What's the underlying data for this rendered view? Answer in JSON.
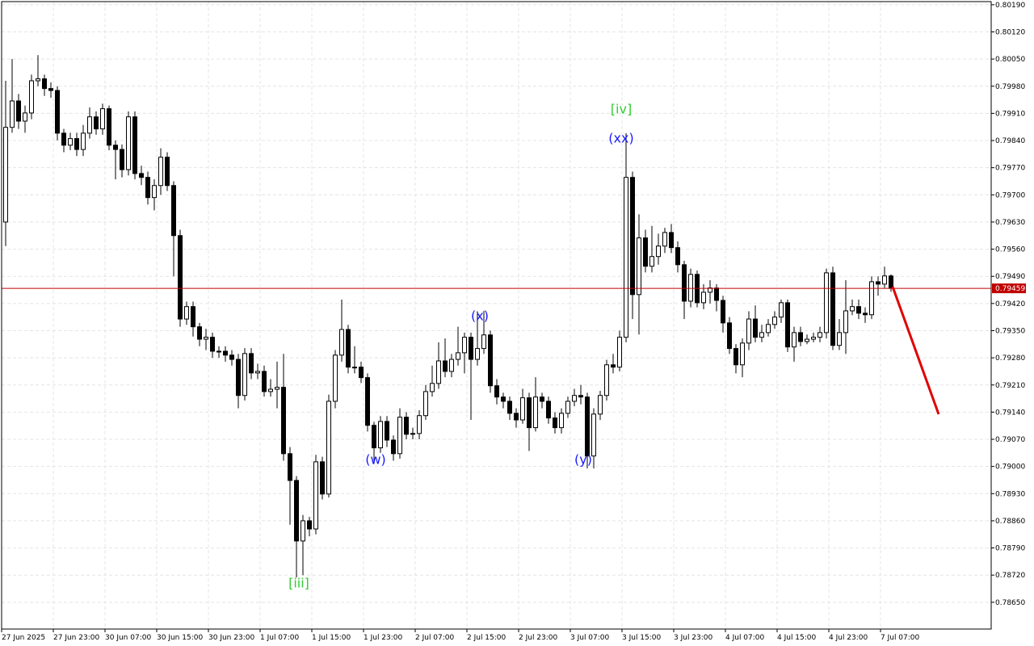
{
  "chart_data": {
    "type": "candlestick",
    "ylim": [
      0.78581,
      0.80198
    ],
    "yticks": [
      {
        "value": 0.8019,
        "label": "0.80190"
      },
      {
        "value": 0.8012,
        "label": "0.80120"
      },
      {
        "value": 0.8005,
        "label": "0.80050"
      },
      {
        "value": 0.7998,
        "label": "0.79980"
      },
      {
        "value": 0.7991,
        "label": "0.79910"
      },
      {
        "value": 0.7984,
        "label": "0.79840"
      },
      {
        "value": 0.7977,
        "label": "0.79770"
      },
      {
        "value": 0.797,
        "label": "0.79700"
      },
      {
        "value": 0.7963,
        "label": "0.79630"
      },
      {
        "value": 0.7956,
        "label": "0.79560"
      },
      {
        "value": 0.7949,
        "label": "0.79490"
      },
      {
        "value": 0.7942,
        "label": "0.79420"
      },
      {
        "value": 0.7935,
        "label": "0.79350"
      },
      {
        "value": 0.7928,
        "label": "0.79280"
      },
      {
        "value": 0.7921,
        "label": "0.79210"
      },
      {
        "value": 0.7914,
        "label": "0.79140"
      },
      {
        "value": 0.7907,
        "label": "0.79070"
      },
      {
        "value": 0.79,
        "label": "0.79000"
      },
      {
        "value": 0.7893,
        "label": "0.78930"
      },
      {
        "value": 0.7886,
        "label": "0.78860"
      },
      {
        "value": 0.7879,
        "label": "0.78790"
      },
      {
        "value": 0.7872,
        "label": "0.78720"
      },
      {
        "value": 0.7865,
        "label": "0.78650"
      }
    ],
    "grid": true,
    "up_color": "#ffffff",
    "down_color": "#000000",
    "current_price": 0.79459,
    "current_price_color": "#c00000",
    "annotations": [
      {
        "text": "[iv]",
        "color": "#33cc33"
      },
      {
        "text": "(xx)",
        "color": "#1a1aff"
      },
      {
        "text": "(x)",
        "color": "#1a1aff"
      },
      {
        "text": "(w)",
        "color": "#1a1aff"
      },
      {
        "text": "(y)",
        "color": "#1a1aff"
      },
      {
        "text": "[iii]",
        "color": "#33cc33"
      }
    ],
    "categories": [
      "27 Jun 2025",
      null,
      null,
      null,
      null,
      null,
      null,
      null,
      "27 Jun 23:00",
      null,
      null,
      null,
      null,
      null,
      null,
      null,
      "30 Jun 07:00",
      null,
      null,
      null,
      null,
      null,
      null,
      null,
      "30 Jun 15:00",
      null,
      null,
      null,
      null,
      null,
      null,
      null,
      "30 Jun 23:00",
      null,
      null,
      null,
      null,
      null,
      null,
      null,
      "1 Jul 07:00",
      null,
      null,
      null,
      null,
      null,
      null,
      null,
      "1 Jul 15:00",
      null,
      null,
      null,
      null,
      null,
      null,
      null,
      "1 Jul 23:00",
      null,
      null,
      null,
      null,
      null,
      null,
      null,
      "2 Jul 07:00",
      null,
      null,
      null,
      null,
      null,
      null,
      null,
      "2 Jul 15:00",
      null,
      null,
      null,
      null,
      null,
      null,
      null,
      "2 Jul 23:00",
      null,
      null,
      null,
      null,
      null,
      null,
      null,
      "3 Jul 07:00",
      null,
      null,
      null,
      null,
      null,
      null,
      null,
      "3 Jul 15:00",
      null,
      null,
      null,
      null,
      null,
      null,
      null,
      "3 Jul 23:00",
      null,
      null,
      null,
      null,
      null,
      null,
      null,
      "4 Jul 07:00",
      null,
      null,
      null,
      null,
      null,
      null,
      null,
      "4 Jul 15:00",
      null,
      null,
      null,
      null,
      null,
      null,
      null,
      "4 Jul 23:00",
      null,
      null,
      null,
      null,
      null,
      null,
      null,
      "7 Jul 07:00",
      null
    ],
    "open": [
      0.7963,
      0.79874,
      0.79942,
      0.7989,
      0.79911,
      0.79994,
      0.79999,
      0.79974,
      0.79969,
      0.79859,
      0.79828,
      0.79845,
      0.79817,
      0.79859,
      0.79901,
      0.7987,
      0.79922,
      0.79828,
      0.79817,
      0.79765,
      0.79901,
      0.79755,
      0.79745,
      0.79693,
      0.79724,
      0.79797,
      0.79724,
      0.79595,
      0.7938,
      0.79412,
      0.7936,
      0.79328,
      0.79333,
      0.79297,
      0.79297,
      0.79287,
      0.79276,
      0.79183,
      0.79291,
      0.79241,
      0.79245,
      0.79193,
      0.79199,
      0.79204,
      0.79033,
      0.78964,
      0.78808,
      0.7886,
      0.78839,
      0.79012,
      0.78929,
      0.79168,
      0.79287,
      0.79353,
      0.79256,
      0.79256,
      0.79229,
      0.79106,
      0.79048,
      0.79116,
      0.79068,
      0.79033,
      0.79127,
      0.79083,
      0.79085,
      0.79131,
      0.79193,
      0.79214,
      0.79272,
      0.79245,
      0.79276,
      0.79293,
      0.79333,
      0.79276,
      0.79304,
      0.79339,
      0.79208,
      0.79179,
      0.79168,
      0.79137,
      0.7912,
      0.79177,
      0.791,
      0.79179,
      0.79168,
      0.79125,
      0.791,
      0.79137,
      0.79168,
      0.79183,
      0.79179,
      0.79027,
      0.79135,
      0.79183,
      0.79262,
      0.79256,
      0.79333,
      0.79745,
      0.79443,
      0.79589,
      0.79516,
      0.79541,
      0.79568,
      0.79603,
      0.79564,
      0.7952,
      0.79426,
      0.79495,
      0.79422,
      0.79449,
      0.7946,
      0.79428,
      0.7937,
      0.79304,
      0.79262,
      0.79318,
      0.7938,
      0.79333,
      0.79345,
      0.79366,
      0.79385,
      0.79422,
      0.79308,
      0.79345,
      0.79322,
      0.79328,
      0.79333,
      0.79345,
      0.79499,
      0.79312,
      0.79345,
      0.79401,
      0.79412,
      0.79395,
      0.79391,
      0.79476,
      0.7947,
      0.79491
    ],
    "high": [
      0.79994,
      0.8005,
      0.7996,
      0.7993,
      0.8001,
      0.8006,
      0.8001,
      0.7999,
      0.7998,
      0.7987,
      0.7986,
      0.7986,
      0.7988,
      0.79925,
      0.79915,
      0.79935,
      0.7993,
      0.7984,
      0.7983,
      0.79915,
      0.79915,
      0.79775,
      0.7976,
      0.7974,
      0.7982,
      0.7981,
      0.79735,
      0.7961,
      0.79425,
      0.79425,
      0.7937,
      0.79355,
      0.79345,
      0.7931,
      0.7931,
      0.793,
      0.7929,
      0.79305,
      0.79305,
      0.79265,
      0.7926,
      0.79225,
      0.7927,
      0.7929,
      0.7905,
      0.78975,
      0.78875,
      0.7887,
      0.7903,
      0.79025,
      0.79185,
      0.793,
      0.7943,
      0.79365,
      0.7931,
      0.7927,
      0.7924,
      0.79115,
      0.7913,
      0.7913,
      0.7908,
      0.7915,
      0.7914,
      0.791,
      0.79145,
      0.7921,
      0.7926,
      0.7932,
      0.7933,
      0.7929,
      0.7936,
      0.79345,
      0.79345,
      0.794,
      0.79401,
      0.7935,
      0.79225,
      0.7919,
      0.7918,
      0.7915,
      0.792,
      0.7919,
      0.7923,
      0.7919,
      0.7918,
      0.7914,
      0.7915,
      0.7918,
      0.792,
      0.7921,
      0.7919,
      0.7915,
      0.79195,
      0.79275,
      0.7929,
      0.7935,
      0.79859,
      0.7976,
      0.7965,
      0.7961,
      0.7962,
      0.796,
      0.79615,
      0.79625,
      0.7958,
      0.7953,
      0.7951,
      0.79505,
      0.7947,
      0.7948,
      0.7947,
      0.7944,
      0.79385,
      0.79315,
      0.7933,
      0.794,
      0.79415,
      0.79365,
      0.7938,
      0.794,
      0.7943,
      0.7943,
      0.7936,
      0.7936,
      0.7934,
      0.79345,
      0.7936,
      0.7951,
      0.79515,
      0.7938,
      0.7948,
      0.7943,
      0.7943,
      0.7941,
      0.7949,
      0.7949,
      0.79515,
      0.79495
    ],
    "low": [
      0.79568,
      0.7986,
      0.7987,
      0.7986,
      0.79895,
      0.7998,
      0.79955,
      0.7995,
      0.7984,
      0.7981,
      0.79815,
      0.798,
      0.798,
      0.79845,
      0.79855,
      0.79855,
      0.79815,
      0.7974,
      0.79745,
      0.7975,
      0.7974,
      0.79725,
      0.79675,
      0.7966,
      0.797,
      0.7971,
      0.7949,
      0.7936,
      0.79365,
      0.79335,
      0.7931,
      0.793,
      0.7928,
      0.7928,
      0.7927,
      0.7926,
      0.7915,
      0.7917,
      0.79225,
      0.79225,
      0.7918,
      0.7918,
      0.7915,
      0.79015,
      0.7885,
      0.78714,
      0.7872,
      0.7882,
      0.78825,
      0.78915,
      0.7892,
      0.7915,
      0.7927,
      0.7924,
      0.7924,
      0.79215,
      0.7909,
      0.79006,
      0.79035,
      0.7905,
      0.79015,
      0.7902,
      0.7907,
      0.7907,
      0.7907,
      0.7912,
      0.7918,
      0.792,
      0.7923,
      0.7923,
      0.7926,
      0.7924,
      0.7912,
      0.7926,
      0.7929,
      0.7919,
      0.7916,
      0.7915,
      0.7912,
      0.791,
      0.7911,
      0.7904,
      0.7909,
      0.7915,
      0.7911,
      0.79085,
      0.79085,
      0.79125,
      0.79155,
      0.7916,
      0.78995,
      0.78995,
      0.7912,
      0.7917,
      0.7924,
      0.79245,
      0.7932,
      0.7938,
      0.7934,
      0.795,
      0.795,
      0.7952,
      0.7955,
      0.7955,
      0.795,
      0.7938,
      0.7941,
      0.7941,
      0.79405,
      0.7942,
      0.794,
      0.79345,
      0.7929,
      0.7924,
      0.7923,
      0.793,
      0.7932,
      0.7932,
      0.79335,
      0.79355,
      0.7937,
      0.79295,
      0.7927,
      0.7931,
      0.79315,
      0.7932,
      0.7932,
      0.7933,
      0.793,
      0.793,
      0.7929,
      0.7939,
      0.7938,
      0.7937,
      0.7938,
      0.7944,
      0.7946,
      0.7945
    ],
    "close": [
      0.79874,
      0.79942,
      0.7989,
      0.79911,
      0.79994,
      0.79999,
      0.79974,
      0.79969,
      0.79859,
      0.79828,
      0.79845,
      0.79817,
      0.79859,
      0.79901,
      0.7987,
      0.79922,
      0.79828,
      0.79817,
      0.79765,
      0.79901,
      0.79755,
      0.79745,
      0.79693,
      0.79724,
      0.79797,
      0.79724,
      0.79595,
      0.7938,
      0.79412,
      0.7936,
      0.79328,
      0.79333,
      0.79297,
      0.79297,
      0.79287,
      0.79276,
      0.79183,
      0.79291,
      0.79241,
      0.79245,
      0.79193,
      0.79199,
      0.79204,
      0.79033,
      0.78964,
      0.78808,
      0.7886,
      0.78839,
      0.79012,
      0.78929,
      0.79168,
      0.79287,
      0.79353,
      0.79256,
      0.79256,
      0.79229,
      0.79106,
      0.79048,
      0.79116,
      0.79068,
      0.79033,
      0.79127,
      0.79083,
      0.79085,
      0.79131,
      0.79193,
      0.79214,
      0.79272,
      0.79245,
      0.79276,
      0.79293,
      0.79333,
      0.79276,
      0.79304,
      0.79339,
      0.79208,
      0.79179,
      0.79168,
      0.79137,
      0.7912,
      0.79177,
      0.791,
      0.79179,
      0.79168,
      0.79125,
      0.791,
      0.79137,
      0.79168,
      0.79183,
      0.79179,
      0.79027,
      0.79135,
      0.79183,
      0.79262,
      0.79256,
      0.79333,
      0.79745,
      0.79443,
      0.79589,
      0.79516,
      0.79541,
      0.79568,
      0.79603,
      0.79564,
      0.7952,
      0.79426,
      0.79495,
      0.79422,
      0.79449,
      0.7946,
      0.79428,
      0.7937,
      0.79304,
      0.79262,
      0.79318,
      0.7938,
      0.79333,
      0.79345,
      0.79366,
      0.79385,
      0.79422,
      0.79308,
      0.79345,
      0.79322,
      0.79328,
      0.79333,
      0.79345,
      0.79499,
      0.79312,
      0.79345,
      0.79401,
      0.79412,
      0.79395,
      0.79391,
      0.79476,
      0.7947,
      0.79491,
      0.79459
    ]
  }
}
